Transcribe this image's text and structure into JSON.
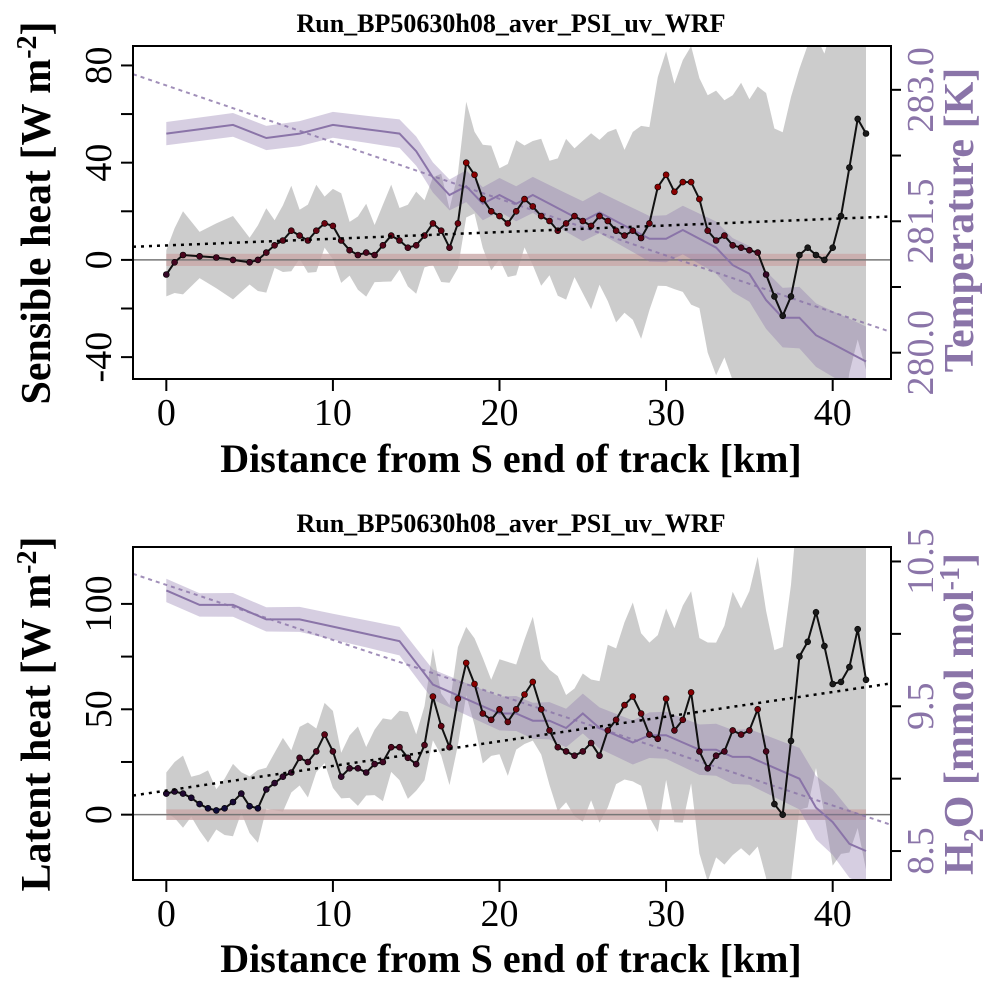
{
  "chart_data": [
    {
      "type": "line",
      "title": "Run_BP50630h08_aver_PSI_uv_WRF",
      "xlabel": "Distance from S end of track [km]",
      "ylabel": "Sensible heat [W m-2]",
      "y2label": "Temperature [K]",
      "xlim": [
        -2,
        43.5
      ],
      "ylim": [
        -49,
        88
      ],
      "y2lim": [
        279.7,
        283.5
      ],
      "xticks": [
        0,
        10,
        20,
        30,
        40
      ],
      "yticks": [
        -40,
        0,
        40,
        80
      ],
      "y2ticks": [
        280.0,
        281.5,
        283.0
      ],
      "y2tick_labels": [
        "280.0",
        "281.5",
        "283.0"
      ],
      "grid": false,
      "colors": {
        "flux_low": "#0a0a3a",
        "flux_high": "#8b0000",
        "temperature": "#8a74a8",
        "band": "#cccccc",
        "zero_band": "#c9a8a8"
      },
      "series": [
        {
          "role": "flux",
          "x": [
            0,
            0.5,
            1,
            2,
            3,
            4,
            5,
            5.5,
            6,
            6.5,
            7,
            7.5,
            8,
            8.5,
            9,
            9.5,
            10,
            10.5,
            11,
            11.5,
            12,
            12.5,
            13,
            13.5,
            14,
            14.5,
            15,
            15.5,
            16,
            16.5,
            17,
            17.5,
            18,
            18.5,
            19,
            19.5,
            20,
            20.5,
            21,
            21.5,
            22,
            22.5,
            23,
            23.5,
            24,
            24.5,
            25,
            25.5,
            26,
            26.5,
            27,
            27.5,
            28,
            28.5,
            29,
            29.5,
            30,
            30.5,
            31,
            31.5,
            32,
            32.5,
            33,
            33.5,
            34,
            34.5,
            35,
            35.5,
            36,
            36.5,
            37,
            37.5,
            38,
            38.5,
            39,
            39.5,
            40,
            40.5,
            41,
            41.5,
            42
          ],
          "y": [
            -6,
            -1,
            2,
            1.5,
            1,
            0,
            -1,
            0,
            3,
            6,
            8,
            12,
            10,
            8,
            12,
            15,
            14,
            8,
            4,
            2,
            3,
            2,
            6,
            10,
            8,
            5,
            6,
            10,
            15,
            12,
            5,
            15,
            40,
            35,
            25,
            20,
            18,
            15,
            20,
            25,
            22,
            18,
            16,
            12,
            15,
            18,
            16,
            14,
            18,
            16,
            12,
            10,
            12,
            9,
            15,
            30,
            35,
            28,
            32,
            32,
            25,
            12,
            8,
            10,
            6,
            5,
            4,
            3,
            -6,
            -15,
            -23,
            -15,
            2,
            5,
            2,
            0,
            5,
            18,
            38,
            58,
            52
          ]
        },
        {
          "role": "temperature",
          "x": [
            0,
            2,
            4,
            6,
            8,
            10,
            12,
            14,
            15,
            16,
            17,
            18,
            19,
            20,
            21,
            22,
            23,
            24,
            25,
            26,
            27,
            28,
            29,
            30,
            31,
            32,
            33,
            34,
            35,
            36,
            37,
            38,
            39,
            40,
            41,
            42
          ],
          "y": [
            282.5,
            282.55,
            282.6,
            282.45,
            282.5,
            282.6,
            282.55,
            282.5,
            282.3,
            282.0,
            281.8,
            281.9,
            281.7,
            281.8,
            281.7,
            281.8,
            281.7,
            281.6,
            281.5,
            281.6,
            281.5,
            281.4,
            281.3,
            281.3,
            281.4,
            281.3,
            281.2,
            281.0,
            280.9,
            280.6,
            280.4,
            280.4,
            280.2,
            280.1,
            280.0,
            279.9
          ]
        }
      ]
    },
    {
      "type": "line",
      "title": "Run_BP50630h08_aver_PSI_uv_WRF",
      "xlabel": "Distance from S end of track [km]",
      "ylabel": "Latent heat [W m-2]",
      "y2label": "H2O [mmol mol-1]",
      "xlim": [
        -2,
        43.5
      ],
      "ylim": [
        -31,
        127
      ],
      "y2lim": [
        8.3,
        10.6
      ],
      "xticks": [
        0,
        10,
        20,
        30,
        40
      ],
      "yticks": [
        0,
        50,
        100
      ],
      "y2ticks": [
        8.5,
        9.5,
        10.5
      ],
      "y2tick_labels": [
        "8.5",
        "9.5",
        "10.5"
      ],
      "grid": false,
      "colors": {
        "flux_low": "#0a0a3a",
        "flux_high": "#8b0000",
        "h2o": "#8a74a8",
        "band": "#cccccc",
        "zero_band": "#c9a8a8"
      },
      "series": [
        {
          "role": "flux",
          "x": [
            0,
            0.5,
            1,
            1.5,
            2,
            2.5,
            3,
            3.5,
            4,
            4.5,
            5,
            5.5,
            6,
            6.5,
            7,
            7.5,
            8,
            8.5,
            9,
            9.5,
            10,
            10.5,
            11,
            11.5,
            12,
            12.5,
            13,
            13.5,
            14,
            14.5,
            15,
            15.5,
            16,
            16.5,
            17,
            17.5,
            18,
            18.5,
            19,
            19.5,
            20,
            20.5,
            21,
            21.5,
            22,
            22.5,
            23,
            23.5,
            24,
            24.5,
            25,
            25.5,
            26,
            26.5,
            27,
            27.5,
            28,
            28.5,
            29,
            29.5,
            30,
            30.5,
            31,
            31.5,
            32,
            32.5,
            33,
            33.5,
            34,
            34.5,
            35,
            35.5,
            36,
            36.5,
            37,
            37.5,
            38,
            38.5,
            39,
            39.5,
            40,
            40.5,
            41,
            41.5,
            42
          ],
          "y": [
            10,
            11,
            10,
            8,
            5,
            3,
            2,
            3,
            6,
            10,
            4,
            3,
            12,
            15,
            18,
            20,
            27,
            25,
            30,
            38,
            30,
            18,
            22,
            22,
            20,
            24,
            25,
            32,
            32,
            27,
            24,
            33,
            56,
            42,
            32,
            55,
            72,
            62,
            48,
            45,
            50,
            44,
            50,
            57,
            63,
            50,
            40,
            32,
            30,
            28,
            30,
            34,
            28,
            40,
            45,
            52,
            56,
            48,
            38,
            36,
            55,
            40,
            45,
            58,
            30,
            22,
            28,
            30,
            40,
            38,
            40,
            50,
            30,
            5,
            0,
            35,
            75,
            82,
            96,
            80,
            62,
            63,
            70,
            88,
            64
          ]
        },
        {
          "role": "h2o",
          "x": [
            0,
            2,
            4,
            6,
            8,
            10,
            12,
            14,
            15,
            16,
            17,
            18,
            19,
            20,
            21,
            22,
            23,
            24,
            25,
            26,
            27,
            28,
            29,
            30,
            31,
            32,
            33,
            34,
            35,
            36,
            37,
            38,
            39,
            40,
            41,
            42
          ],
          "y": [
            10.3,
            10.2,
            10.2,
            10.1,
            10.1,
            10.05,
            10.0,
            9.95,
            9.8,
            9.65,
            9.6,
            9.55,
            9.5,
            9.45,
            9.45,
            9.4,
            9.4,
            9.35,
            9.45,
            9.35,
            9.3,
            9.25,
            9.3,
            9.3,
            9.25,
            9.2,
            9.2,
            9.15,
            9.15,
            9.1,
            9.05,
            9.0,
            8.8,
            8.7,
            8.55,
            8.5
          ]
        }
      ]
    }
  ]
}
